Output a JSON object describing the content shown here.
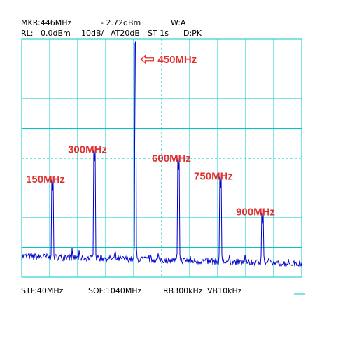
{
  "header": {
    "marker": "MKR:446MHz",
    "marker_level": "- 2.72dBm",
    "mode": "W:A",
    "ref_level": "RL:   0.0dBm",
    "scale": "10dB/",
    "attenuation": "AT20dB",
    "sweep_time": "ST 1s",
    "detector": "D:PK"
  },
  "footer": {
    "start": "STF:40MHz",
    "stop": "SOF:1040MHz",
    "rbw": "RB300kHz",
    "vbw": "VB10kHz"
  },
  "colors": {
    "grid": "#00c8c8",
    "trace": "#0000cc",
    "annotation": "#e03030"
  },
  "chart_data": {
    "type": "line",
    "title": "",
    "xlabel": "",
    "ylabel": "",
    "x_unit": "MHz",
    "y_unit": "dBm",
    "xlim": [
      40,
      1040
    ],
    "ylim": [
      -80,
      0
    ],
    "grid": true,
    "noise_floor_dbm": -73,
    "peaks": [
      {
        "freq": 150,
        "dbm": -51,
        "label": "150MHz"
      },
      {
        "freq": 300,
        "dbm": -41,
        "label": "300MHz"
      },
      {
        "freq": 446,
        "dbm": -3,
        "label": "450MHz"
      },
      {
        "freq": 600,
        "dbm": -44,
        "label": "600MHz"
      },
      {
        "freq": 750,
        "dbm": -50,
        "label": "750MHz"
      },
      {
        "freq": 900,
        "dbm": -62,
        "label": "900MHz"
      }
    ]
  }
}
